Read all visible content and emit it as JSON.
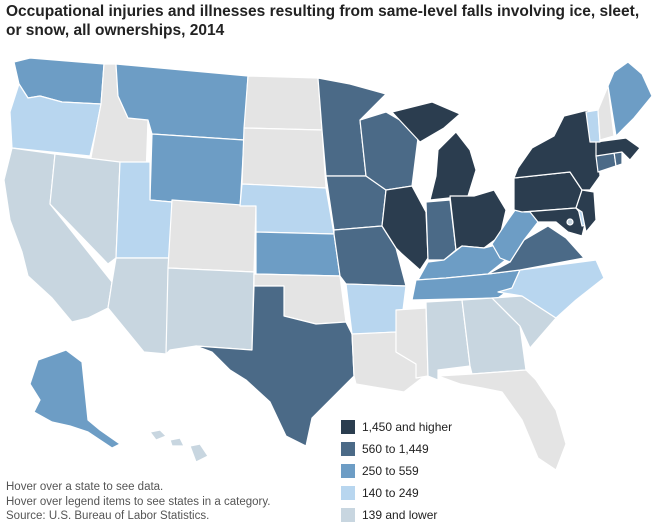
{
  "title": "Occupational injuries and illnesses resulting from same-level falls involving ice, sleet, or snow, all ownerships, 2014",
  "colors": {
    "higher": "#2b3d4f",
    "c560": "#4b6a87",
    "c250": "#6d9dc5",
    "c140": "#b8d6ef",
    "lower": "#c8d6e0",
    "nodata": "#e4e4e4"
  },
  "legend": [
    {
      "label": "1,450 and higher",
      "key": "higher"
    },
    {
      "label": "560 to 1,449",
      "key": "c560"
    },
    {
      "label": "250 to 559",
      "key": "c250"
    },
    {
      "label": "140 to 249",
      "key": "c140"
    },
    {
      "label": "139 and lower",
      "key": "lower"
    }
  ],
  "notes": {
    "hover_state": "Hover over a state to see data.",
    "hover_legend": "Hover over legend items to see states in a category.",
    "source": "Source: U.S. Bureau of Labor Statistics."
  },
  "states": [
    {
      "abbr": "WA",
      "category": "c250"
    },
    {
      "abbr": "OR",
      "category": "c140"
    },
    {
      "abbr": "CA",
      "category": "lower"
    },
    {
      "abbr": "ID",
      "category": "nodata"
    },
    {
      "abbr": "NV",
      "category": "lower"
    },
    {
      "abbr": "MT",
      "category": "c250"
    },
    {
      "abbr": "WY",
      "category": "c250"
    },
    {
      "abbr": "UT",
      "category": "c140"
    },
    {
      "abbr": "AZ",
      "category": "lower"
    },
    {
      "abbr": "CO",
      "category": "nodata"
    },
    {
      "abbr": "NM",
      "category": "lower"
    },
    {
      "abbr": "ND",
      "category": "nodata"
    },
    {
      "abbr": "SD",
      "category": "nodata"
    },
    {
      "abbr": "NE",
      "category": "c140"
    },
    {
      "abbr": "KS",
      "category": "c250"
    },
    {
      "abbr": "OK",
      "category": "nodata"
    },
    {
      "abbr": "TX",
      "category": "c560"
    },
    {
      "abbr": "MN",
      "category": "c560"
    },
    {
      "abbr": "IA",
      "category": "c560"
    },
    {
      "abbr": "MO",
      "category": "c560"
    },
    {
      "abbr": "AR",
      "category": "c140"
    },
    {
      "abbr": "LA",
      "category": "nodata"
    },
    {
      "abbr": "WI",
      "category": "c560"
    },
    {
      "abbr": "IL",
      "category": "higher"
    },
    {
      "abbr": "MI",
      "category": "higher"
    },
    {
      "abbr": "IN",
      "category": "c560"
    },
    {
      "abbr": "OH",
      "category": "higher"
    },
    {
      "abbr": "KY",
      "category": "c250"
    },
    {
      "abbr": "TN",
      "category": "c250"
    },
    {
      "abbr": "MS",
      "category": "nodata"
    },
    {
      "abbr": "AL",
      "category": "lower"
    },
    {
      "abbr": "GA",
      "category": "lower"
    },
    {
      "abbr": "FL",
      "category": "nodata"
    },
    {
      "abbr": "SC",
      "category": "lower"
    },
    {
      "abbr": "NC",
      "category": "c140"
    },
    {
      "abbr": "VA",
      "category": "c560"
    },
    {
      "abbr": "WV",
      "category": "c250"
    },
    {
      "abbr": "PA",
      "category": "higher"
    },
    {
      "abbr": "NY",
      "category": "higher"
    },
    {
      "abbr": "MD",
      "category": "higher"
    },
    {
      "abbr": "DE",
      "category": "c140"
    },
    {
      "abbr": "NJ",
      "category": "higher"
    },
    {
      "abbr": "CT",
      "category": "c560"
    },
    {
      "abbr": "RI",
      "category": "c560"
    },
    {
      "abbr": "MA",
      "category": "higher"
    },
    {
      "abbr": "VT",
      "category": "c140"
    },
    {
      "abbr": "NH",
      "category": "nodata"
    },
    {
      "abbr": "ME",
      "category": "c250"
    },
    {
      "abbr": "AK",
      "category": "c250"
    },
    {
      "abbr": "HI",
      "category": "lower"
    },
    {
      "abbr": "DC",
      "category": "lower"
    }
  ]
}
